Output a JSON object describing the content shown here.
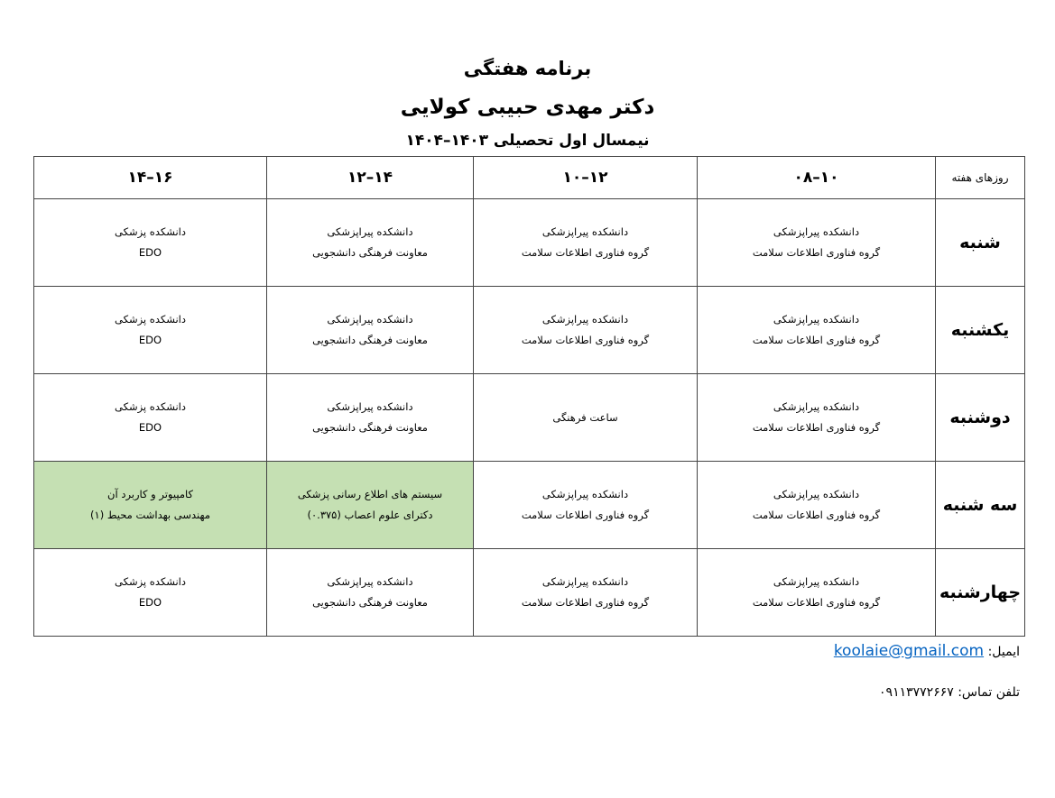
{
  "header": {
    "title": "برنامه هفتگی",
    "name": "دکتر مهدی حبیبی کولایی",
    "semester": "نیمسال اول تحصیلی ۱۴۰۳–۱۴۰۴"
  },
  "table": {
    "columns": [
      "روزهای هفته",
      "۰۸–۱۰",
      "۱۰–۱۲",
      "۱۲–۱۴",
      "۱۴–۱۶"
    ],
    "rows": [
      {
        "day": "شنبه",
        "cells": [
          [
            "دانشکده پیراپزشکی",
            "گروه فناوری اطلاعات سلامت"
          ],
          [
            "دانشکده پیراپزشکی",
            "گروه فناوری اطلاعات سلامت"
          ],
          [
            "دانشکده پیراپزشکی",
            "معاونت فرهنگی دانشجویی"
          ],
          [
            "دانشکده پزشکی",
            "EDO"
          ]
        ]
      },
      {
        "day": "یکشنبه",
        "cells": [
          [
            "دانشکده پیراپزشکی",
            "گروه فناوری اطلاعات سلامت"
          ],
          [
            "دانشکده پیراپزشکی",
            "گروه فناوری اطلاعات سلامت"
          ],
          [
            "دانشکده پیراپزشکی",
            "معاونت فرهنگی دانشجویی"
          ],
          [
            "دانشکده پزشکی",
            "EDO"
          ]
        ]
      },
      {
        "day": "دوشنبه",
        "cells": [
          [
            "دانشکده پیراپزشکی",
            "گروه فناوری اطلاعات سلامت"
          ],
          [
            "ساعت فرهنگی",
            ""
          ],
          [
            "دانشکده پیراپزشکی",
            "معاونت فرهنگی دانشجویی"
          ],
          [
            "دانشکده پزشکی",
            "EDO"
          ]
        ]
      },
      {
        "day": "سه شنبه",
        "cells": [
          [
            "دانشکده پیراپزشکی",
            "گروه فناوری اطلاعات سلامت"
          ],
          [
            "دانشکده پیراپزشکی",
            "گروه فناوری اطلاعات سلامت"
          ],
          [
            "سیستم های اطلاع رسانی پزشکی",
            "دکترای علوم اعصاب (۰.۳۷۵)"
          ],
          [
            "کامپیوتر و کاربرد آن",
            "مهندسی بهداشت محیط (۱)"
          ]
        ],
        "highlight": [
          2,
          3
        ]
      },
      {
        "day": "چهارشنبه",
        "cells": [
          [
            "دانشکده پیراپزشکی",
            "گروه فناوری اطلاعات سلامت"
          ],
          [
            "دانشکده پیراپزشکی",
            "گروه فناوری اطلاعات سلامت"
          ],
          [
            "دانشکده پیراپزشکی",
            "معاونت فرهنگی دانشجویی"
          ],
          [
            "دانشکده پزشکی",
            "EDO"
          ]
        ]
      }
    ],
    "highlight_color": "#c5e0b3"
  },
  "footer": {
    "email_label": "ایمیل:",
    "email": "koolaie@gmail.com",
    "phone_label": "تلفن تماس:",
    "phone": "۰۹۱۱۳۷۷۲۶۶۷"
  }
}
